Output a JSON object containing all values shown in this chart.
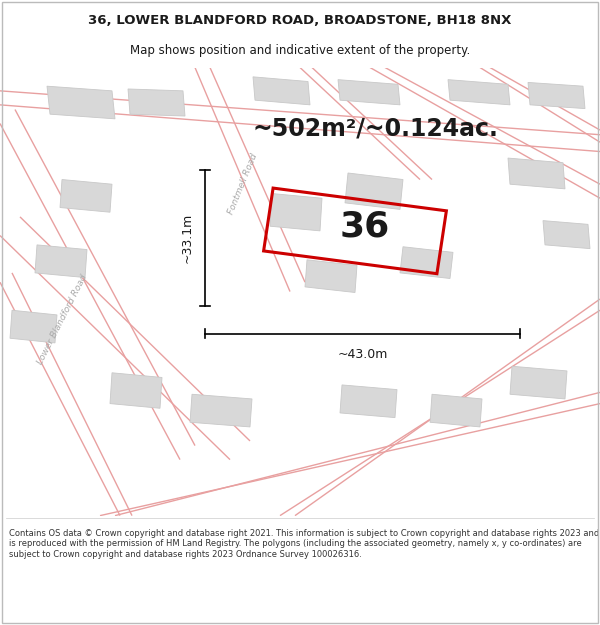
{
  "title_line1": "36, LOWER BLANDFORD ROAD, BROADSTONE, BH18 8NX",
  "title_line2": "Map shows position and indicative extent of the property.",
  "area_label": "~502m²/~0.124ac.",
  "number_label": "36",
  "width_label": "~43.0m",
  "height_label": "~33.1m",
  "road_label_1": "Fontmell Road",
  "road_label_2": "Lower Blandford Road",
  "footer_text": "Contains OS data © Crown copyright and database right 2021. This information is subject to Crown copyright and database rights 2023 and is reproduced with the permission of HM Land Registry. The polygons (including the associated geometry, namely x, y co-ordinates) are subject to Crown copyright and database rights 2023 Ordnance Survey 100026316.",
  "map_bg": "#ebebeb",
  "plot_color": "#cc0000",
  "road_color": "#e8a0a0",
  "building_fill": "#d8d8d8",
  "building_edge": "#c8c8c8",
  "title_bg": "#ffffff",
  "footer_bg": "#ffffff",
  "text_dark": "#1a1a1a",
  "road_label_color": "#aaaaaa",
  "title_fontsize": 9.5,
  "subtitle_fontsize": 8.5,
  "area_fontsize": 17,
  "number_fontsize": 26,
  "dim_fontsize": 9,
  "road_lw": 1.2,
  "plot_lw": 2.2
}
